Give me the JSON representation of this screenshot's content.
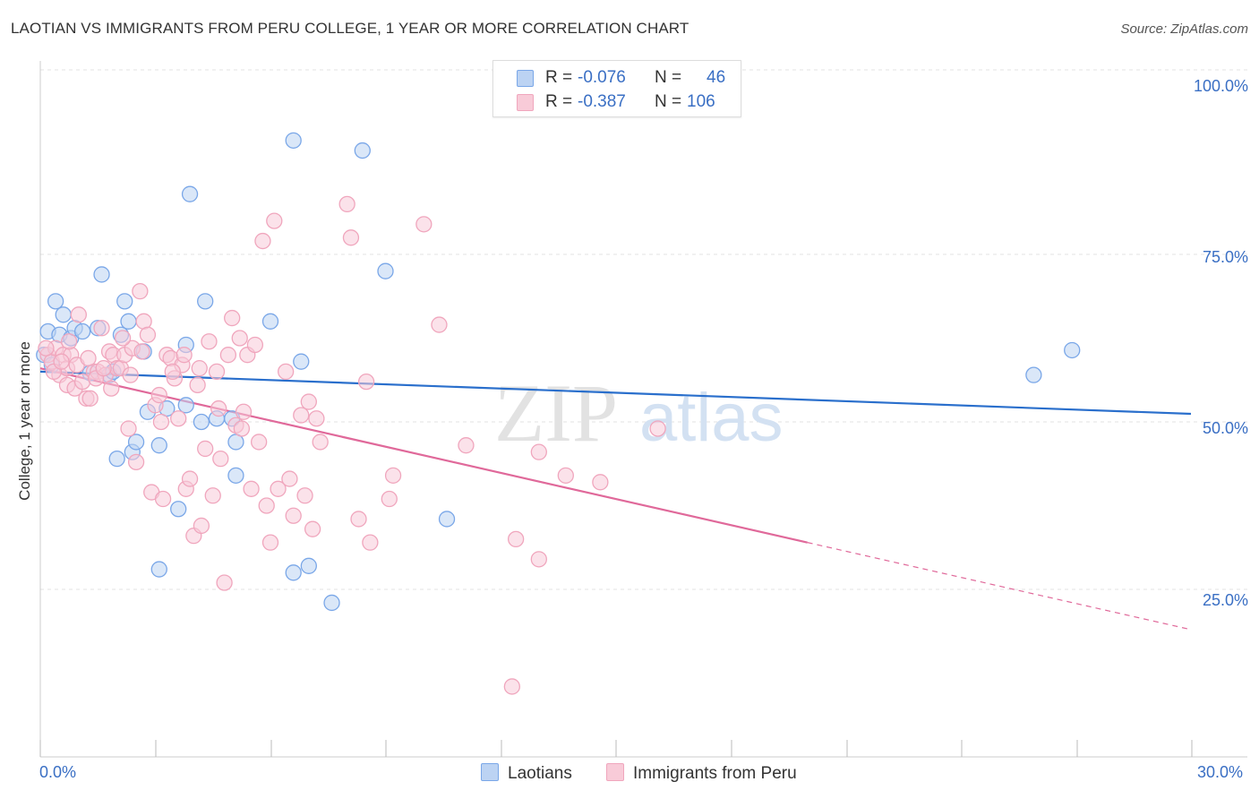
{
  "chart_data": {
    "type": "scatter",
    "title": "LAOTIAN VS IMMIGRANTS FROM PERU COLLEGE, 1 YEAR OR MORE CORRELATION CHART",
    "source": "Source: ZipAtlas.com",
    "ylabel": "College, 1 year or more",
    "xlabel": "",
    "xlim": [
      0,
      30
    ],
    "ylim": [
      0,
      100
    ],
    "x_tick_labels": [
      "0.0%",
      "30.0%"
    ],
    "y_tick_labels": [
      "100.0%",
      "75.0%",
      "50.0%",
      "25.0%"
    ],
    "y_tick_values": [
      100,
      75,
      50,
      25
    ],
    "gridlines": true,
    "watermark": "ZIPatlas",
    "legend_stats": [
      {
        "r_label": "R =",
        "r_value": "-0.076",
        "n_label": "N =",
        "n_value": "46"
      },
      {
        "r_label": "R =",
        "r_value": "-0.387",
        "n_label": "N =",
        "n_value": "106"
      }
    ],
    "series": [
      {
        "name": "Laotians",
        "color": "#7aa7e8",
        "fill": "#bcd3f3",
        "line_color": "#2a6fcc",
        "trend": {
          "x0": 0,
          "y0": 57.5,
          "x1": 30,
          "y1": 51.2
        },
        "points": [
          [
            0.2,
            63.5
          ],
          [
            0.4,
            68
          ],
          [
            0.5,
            63
          ],
          [
            0.6,
            66
          ],
          [
            0.8,
            62.5
          ],
          [
            0.9,
            64
          ],
          [
            1.1,
            63.5
          ],
          [
            1.3,
            57.3
          ],
          [
            1.5,
            64
          ],
          [
            1.6,
            72
          ],
          [
            1.8,
            57
          ],
          [
            2.0,
            44.5
          ],
          [
            2.2,
            68
          ],
          [
            2.3,
            65
          ],
          [
            2.4,
            45.5
          ],
          [
            2.5,
            47
          ],
          [
            2.7,
            60.5
          ],
          [
            2.8,
            51.5
          ],
          [
            3.1,
            46.5
          ],
          [
            3.1,
            28
          ],
          [
            3.3,
            52
          ],
          [
            3.6,
            37
          ],
          [
            3.8,
            61.5
          ],
          [
            3.8,
            52.5
          ],
          [
            3.9,
            84
          ],
          [
            4.2,
            50
          ],
          [
            4.3,
            68
          ],
          [
            4.6,
            50.5
          ],
          [
            5.0,
            50.5
          ],
          [
            5.1,
            47
          ],
          [
            5.1,
            42
          ],
          [
            6.0,
            65
          ],
          [
            6.6,
            27.5
          ],
          [
            6.6,
            92
          ],
          [
            6.8,
            59
          ],
          [
            7.0,
            28.5
          ],
          [
            7.6,
            23
          ],
          [
            8.4,
            90.5
          ],
          [
            9.0,
            72.5
          ],
          [
            10.6,
            35.5
          ],
          [
            25.9,
            57
          ],
          [
            26.9,
            60.7
          ],
          [
            0.1,
            60
          ],
          [
            0.3,
            58.5
          ],
          [
            1.9,
            57.5
          ],
          [
            2.1,
            63
          ]
        ]
      },
      {
        "name": "Immigrants from Peru",
        "color": "#f0a6bd",
        "fill": "#f8cbd8",
        "line_color": "#e0699a",
        "trend": {
          "x0": 0,
          "y0": 58,
          "x1": 20,
          "y1": 32,
          "x_dash_end": 30,
          "y_dash_end": 19
        },
        "points": [
          [
            0.2,
            60
          ],
          [
            0.3,
            59
          ],
          [
            0.4,
            61
          ],
          [
            0.5,
            57
          ],
          [
            0.6,
            60
          ],
          [
            0.7,
            58
          ],
          [
            0.7,
            55.5
          ],
          [
            0.8,
            60
          ],
          [
            0.9,
            55
          ],
          [
            1.0,
            66
          ],
          [
            1.1,
            56
          ],
          [
            1.2,
            53.5
          ],
          [
            1.3,
            53.5
          ],
          [
            1.4,
            57.5
          ],
          [
            1.5,
            57.5
          ],
          [
            1.6,
            64
          ],
          [
            1.7,
            57
          ],
          [
            1.8,
            60.5
          ],
          [
            1.9,
            60
          ],
          [
            2.0,
            58
          ],
          [
            2.1,
            58
          ],
          [
            2.2,
            60
          ],
          [
            2.3,
            49
          ],
          [
            2.4,
            61
          ],
          [
            2.5,
            44
          ],
          [
            2.6,
            69.5
          ],
          [
            2.7,
            65
          ],
          [
            2.8,
            63
          ],
          [
            2.9,
            39.5
          ],
          [
            3.0,
            52.5
          ],
          [
            3.1,
            54
          ],
          [
            3.2,
            38.5
          ],
          [
            3.3,
            60
          ],
          [
            3.4,
            59.5
          ],
          [
            3.5,
            56.5
          ],
          [
            3.6,
            50.5
          ],
          [
            3.7,
            58.5
          ],
          [
            3.8,
            40
          ],
          [
            3.9,
            41.5
          ],
          [
            4.0,
            33
          ],
          [
            4.1,
            55.5
          ],
          [
            4.2,
            34.5
          ],
          [
            4.3,
            46
          ],
          [
            4.4,
            62
          ],
          [
            4.5,
            39
          ],
          [
            4.6,
            57.5
          ],
          [
            4.7,
            44.5
          ],
          [
            4.8,
            26
          ],
          [
            4.9,
            60
          ],
          [
            5.0,
            65.5
          ],
          [
            5.1,
            49.5
          ],
          [
            5.2,
            62.5
          ],
          [
            5.3,
            51.5
          ],
          [
            5.4,
            60
          ],
          [
            5.5,
            40
          ],
          [
            5.6,
            61.5
          ],
          [
            5.7,
            47
          ],
          [
            5.8,
            77
          ],
          [
            5.9,
            37.5
          ],
          [
            6.0,
            32
          ],
          [
            6.1,
            80
          ],
          [
            6.2,
            40
          ],
          [
            6.4,
            57.5
          ],
          [
            6.5,
            41.5
          ],
          [
            6.6,
            36
          ],
          [
            6.8,
            51
          ],
          [
            6.9,
            39
          ],
          [
            7.0,
            53
          ],
          [
            7.1,
            34
          ],
          [
            7.2,
            50.5
          ],
          [
            7.3,
            47
          ],
          [
            8.0,
            82.5
          ],
          [
            8.1,
            77.5
          ],
          [
            8.3,
            35.5
          ],
          [
            8.5,
            56
          ],
          [
            8.6,
            32
          ],
          [
            9.1,
            38.5
          ],
          [
            9.2,
            42
          ],
          [
            10.0,
            79.5
          ],
          [
            10.4,
            64.5
          ],
          [
            11.1,
            46.5
          ],
          [
            12.3,
            10.5
          ],
          [
            12.4,
            32.5
          ],
          [
            13.0,
            29.5
          ],
          [
            13.0,
            45.5
          ],
          [
            13.7,
            42
          ],
          [
            14.6,
            41
          ],
          [
            16.1,
            49
          ],
          [
            0.15,
            61
          ],
          [
            0.35,
            57.5
          ],
          [
            0.55,
            59
          ],
          [
            0.75,
            62
          ],
          [
            0.95,
            58.5
          ],
          [
            1.25,
            59.5
          ],
          [
            1.45,
            56.5
          ],
          [
            1.65,
            58
          ],
          [
            1.85,
            55
          ],
          [
            2.15,
            62.5
          ],
          [
            2.35,
            57
          ],
          [
            2.65,
            60.5
          ],
          [
            3.15,
            50
          ],
          [
            3.45,
            57.5
          ],
          [
            3.75,
            60
          ],
          [
            4.15,
            58
          ],
          [
            4.65,
            52
          ],
          [
            5.25,
            49
          ]
        ]
      }
    ]
  },
  "labels": {
    "legend_series_1": "Laotians",
    "legend_series_2": "Immigrants from Peru"
  }
}
